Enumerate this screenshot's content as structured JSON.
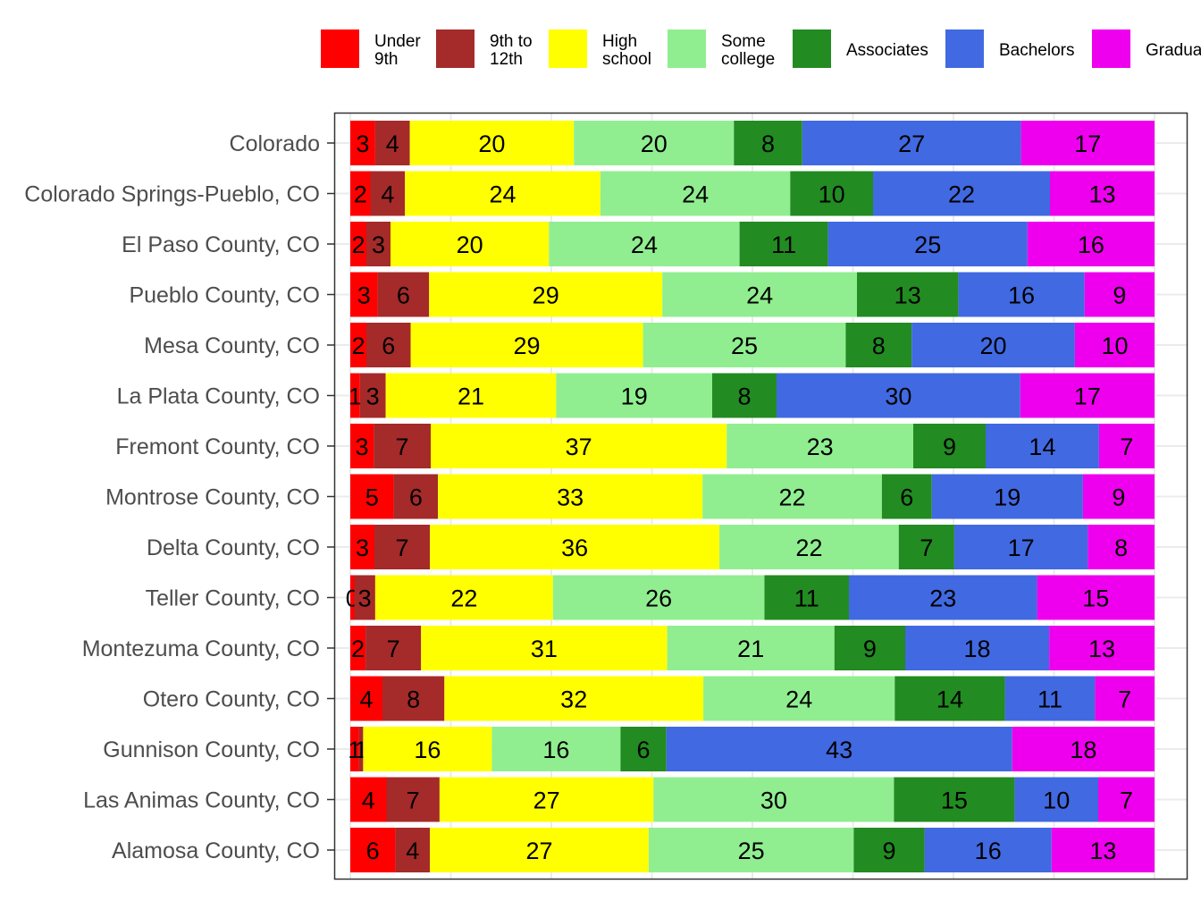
{
  "chart_data": {
    "type": "bar",
    "orientation": "horizontal",
    "stacked": true,
    "categories": [
      "Colorado",
      "Colorado Springs-Pueblo, CO",
      "El Paso County, CO",
      "Pueblo County, CO",
      "Mesa County, CO",
      "La Plata County, CO",
      "Fremont County, CO",
      "Montrose County, CO",
      "Delta County, CO",
      "Teller County, CO",
      "Montezuma County, CO",
      "Otero County, CO",
      "Gunnison County, CO",
      "Las Animas County, CO",
      "Alamosa County, CO"
    ],
    "series": [
      {
        "name": "Under 9th",
        "legend_lines": [
          "Under",
          "9th"
        ],
        "color": "#FF0000",
        "values": [
          3.1,
          2.5,
          2.0,
          3.4,
          2.0,
          1.2,
          2.9,
          5.4,
          3.0,
          0.5,
          1.9,
          4.0,
          1.1,
          4.5,
          5.6
        ],
        "labels": [
          "3",
          "2",
          "2",
          "3",
          "2",
          "1",
          "3",
          "5",
          "3",
          "0",
          "2",
          "4",
          "1",
          "4",
          "6"
        ]
      },
      {
        "name": "9th to 12th",
        "legend_lines": [
          "9th to",
          "12th"
        ],
        "color": "#A52A2A",
        "values": [
          4.3,
          4.3,
          3.0,
          6.4,
          5.5,
          3.2,
          7.1,
          5.5,
          6.9,
          2.6,
          6.9,
          7.7,
          0.5,
          6.6,
          4.3
        ],
        "labels": [
          "4",
          "4",
          "3",
          "6",
          "6",
          "3",
          "7",
          "6",
          "7",
          "3",
          "7",
          "8",
          "1",
          "7",
          "4"
        ]
      },
      {
        "name": "High school",
        "legend_lines": [
          "High",
          "school"
        ],
        "color": "#FFFF00",
        "values": [
          20.4,
          24.3,
          19.7,
          29.0,
          28.9,
          21.2,
          36.8,
          32.9,
          36.0,
          22.1,
          30.6,
          32.2,
          16.0,
          26.6,
          27.2
        ],
        "labels": [
          "20",
          "24",
          "20",
          "29",
          "29",
          "21",
          "37",
          "33",
          "36",
          "22",
          "31",
          "32",
          "16",
          "27",
          "27"
        ]
      },
      {
        "name": "Some college",
        "legend_lines": [
          "Some",
          "college"
        ],
        "color": "#90EE90",
        "values": [
          19.9,
          23.6,
          23.7,
          24.2,
          25.2,
          19.4,
          23.2,
          22.3,
          22.3,
          26.3,
          20.8,
          23.8,
          16.0,
          29.9,
          25.5
        ],
        "labels": [
          "20",
          "24",
          "24",
          "24",
          "25",
          "19",
          "23",
          "22",
          "22",
          "26",
          "21",
          "24",
          "16",
          "30",
          "25"
        ]
      },
      {
        "name": "Associates",
        "legend_lines": [
          "Associates"
        ],
        "color": "#228B22",
        "values": [
          8.5,
          10.3,
          11.0,
          12.6,
          8.2,
          8.0,
          9.0,
          6.2,
          6.9,
          10.5,
          8.8,
          13.7,
          5.7,
          15.0,
          8.8
        ],
        "labels": [
          "8",
          "10",
          "11",
          "13",
          "8",
          "8",
          "9",
          "6",
          "7",
          "11",
          "9",
          "14",
          "6",
          "15",
          "9"
        ]
      },
      {
        "name": "Bachelors",
        "legend_lines": [
          "Bachelors"
        ],
        "color": "#4169E1",
        "values": [
          27.2,
          22.0,
          24.8,
          15.7,
          20.3,
          30.3,
          14.1,
          18.8,
          16.6,
          23.4,
          17.9,
          11.2,
          43.0,
          10.4,
          15.8
        ],
        "labels": [
          "27",
          "22",
          "25",
          "16",
          "20",
          "30",
          "14",
          "19",
          "17",
          "23",
          "18",
          "11",
          "43",
          "10",
          "16"
        ]
      },
      {
        "name": "Graduate",
        "legend_lines": [
          "Graduate"
        ],
        "color": "#EE00EE",
        "values": [
          16.6,
          13.0,
          15.8,
          8.7,
          9.9,
          16.7,
          6.9,
          8.9,
          8.3,
          14.6,
          13.1,
          7.4,
          17.7,
          7.0,
          12.8
        ],
        "labels": [
          "17",
          "13",
          "16",
          "9",
          "10",
          "17",
          "7",
          "9",
          "8",
          "15",
          "13",
          "7",
          "18",
          "7",
          "13"
        ]
      }
    ],
    "xlim": [
      -2,
      104
    ],
    "xlabel": "",
    "ylabel": "",
    "grid": true,
    "legend_position": "top"
  },
  "colors": {
    "panel_border": "#333333",
    "grid": "#EBEBEB",
    "axis_text": "#4D4D4D"
  }
}
